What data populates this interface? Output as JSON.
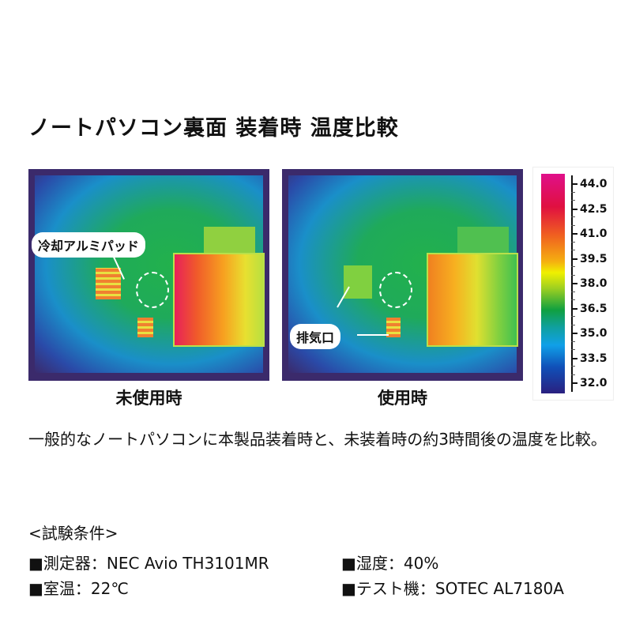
{
  "title": "ノートパソコン裏面 装着時 温度比較",
  "images": [
    {
      "caption": "未使用時",
      "callout": "冷却アルミパッド"
    },
    {
      "caption": "使用時",
      "callout": "排気口"
    }
  ],
  "scale": {
    "ticks": [
      "44.0",
      "42.5",
      "41.0",
      "39.5",
      "38.0",
      "36.5",
      "35.0",
      "33.5",
      "32.0"
    ],
    "min": 32.0,
    "max": 44.0,
    "colors": [
      "#e0108a",
      "#e01040",
      "#f06020",
      "#f0f000",
      "#10a040",
      "#10a0e8",
      "#1050b8",
      "#2a2080"
    ]
  },
  "description": "一般的なノートパソコンに本製品装着時と、未装着時の約3時間後の温度を比較。",
  "conditions": {
    "heading": "<試験条件>",
    "items": [
      "■測定器：NEC Avio TH3101MR",
      "■湿度：40%",
      "■室温：22℃",
      "■テスト機：SOTEC AL7180A"
    ]
  }
}
